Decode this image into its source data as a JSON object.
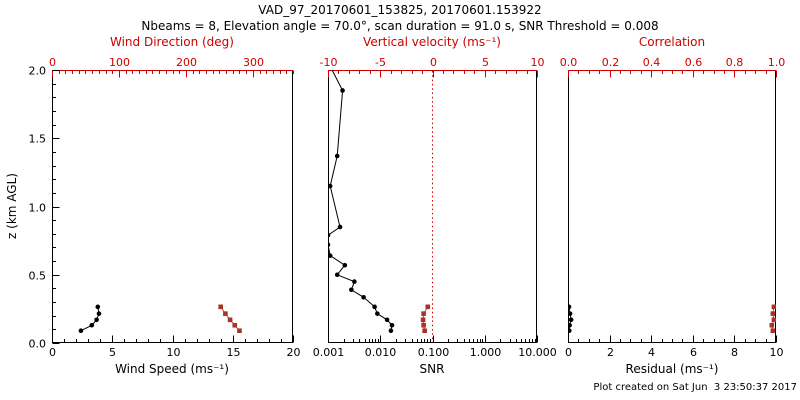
{
  "title": "VAD_97_20170601_153825, 20170601.153922",
  "subtitle": "Nbeams = 8, Elevation angle = 70.0°, scan duration = 91.0 s, SNR Threshold = 0.008",
  "footer": {
    "created": "Plot created on Sat Jun  3 23:50:37 2017"
  },
  "colors": {
    "axis_red": "#cc0000",
    "marker_red": "#a93226",
    "line_red": "#c0392b",
    "black": "#000000"
  },
  "chart_data": [
    {
      "id": "wind",
      "type": "scatter",
      "xlabel": "Wind Speed (ms⁻¹)",
      "top_label": "Wind Direction (deg)",
      "ylabel": "z (km AGL)",
      "x_bottom": {
        "min": 0,
        "max": 20,
        "major": [
          0,
          5,
          10,
          15,
          20
        ],
        "labels": [
          "0",
          "5",
          "10",
          "15",
          "20"
        ],
        "minor_step": 1
      },
      "x_top": {
        "min": 0,
        "max": 360,
        "major": [
          0,
          100,
          200,
          300
        ],
        "labels": [
          "0",
          "100",
          "200",
          "300"
        ],
        "minor_step": 10
      },
      "y": {
        "min": 0,
        "max": 2,
        "major": [
          0,
          0.5,
          1,
          1.5,
          2
        ],
        "labels": [
          "0.0",
          "0.5",
          "1.0",
          "1.5",
          "2.0"
        ],
        "minor_step": 0.1
      },
      "series": [
        {
          "name": "wind-speed",
          "color": "black",
          "marker": "circle",
          "axis": "bottom",
          "z": [
            0.09,
            0.13,
            0.17,
            0.215,
            0.265
          ],
          "values": [
            2.4,
            3.3,
            3.7,
            3.9,
            3.8
          ]
        },
        {
          "name": "wind-direction",
          "color": "red",
          "marker": "square",
          "axis": "top",
          "z": [
            0.09,
            0.13,
            0.17,
            0.215,
            0.265
          ],
          "values": [
            280,
            273,
            266,
            259,
            252
          ]
        }
      ]
    },
    {
      "id": "snr",
      "type": "scatter",
      "xlabel": "SNR",
      "top_label": "Vertical velocity (ms⁻¹)",
      "x_bottom": {
        "scale": "log",
        "min": 0.001,
        "max": 10,
        "major": [
          0.001,
          0.01,
          0.1,
          1,
          10
        ],
        "labels": [
          "0.001",
          "0.010",
          "0.100",
          "1.000",
          "10.000"
        ]
      },
      "x_top": {
        "min": -10,
        "max": 10,
        "major": [
          -10,
          -5,
          0,
          5,
          10
        ],
        "labels": [
          "-10",
          "-5",
          "0",
          "5",
          "10"
        ],
        "minor_step": 1,
        "zero_line": true
      },
      "series": [
        {
          "name": "snr-profile",
          "color": "black",
          "marker": "circle",
          "axis": "bottom",
          "z": [
            2.0,
            1.85,
            1.37,
            1.15,
            0.85,
            0.79,
            0.72,
            0.64,
            0.57,
            0.5,
            0.45,
            0.39,
            0.335,
            0.265,
            0.215,
            0.17,
            0.13,
            0.09
          ],
          "values": [
            0.0012,
            0.0019,
            0.0015,
            0.0011,
            0.0017,
            0.001,
            0.001,
            0.0011,
            0.0021,
            0.0015,
            0.0032,
            0.0028,
            0.0048,
            0.0078,
            0.0088,
            0.0135,
            0.0168,
            0.016
          ]
        },
        {
          "name": "vertical-velocity",
          "color": "red",
          "marker": "square",
          "axis": "top",
          "z": [
            0.09,
            0.13,
            0.17,
            0.215,
            0.265
          ],
          "values": [
            -0.75,
            -0.85,
            -0.9,
            -0.85,
            -0.45
          ]
        }
      ]
    },
    {
      "id": "residual",
      "type": "scatter",
      "xlabel": "Residual (ms⁻¹)",
      "top_label": "Correlation",
      "x_bottom": {
        "min": 0,
        "max": 10,
        "major": [
          0,
          2,
          4,
          6,
          8,
          10
        ],
        "labels": [
          "0",
          "2",
          "4",
          "6",
          "8",
          "10"
        ],
        "minor_step": 0.5
      },
      "x_top": {
        "min": 0,
        "max": 1,
        "major": [
          0,
          0.2,
          0.4,
          0.6,
          0.8,
          1
        ],
        "labels": [
          "0.0",
          "0.2",
          "0.4",
          "0.6",
          "0.8",
          "1.0"
        ],
        "minor_step": 0.05
      },
      "series": [
        {
          "name": "residual",
          "color": "black",
          "marker": "circle",
          "axis": "bottom",
          "z": [
            0.09,
            0.13,
            0.17,
            0.215,
            0.265
          ],
          "values": [
            0.06,
            0.08,
            0.15,
            0.1,
            0.05
          ]
        },
        {
          "name": "correlation",
          "color": "red",
          "marker": "square",
          "axis": "top",
          "z": [
            0.09,
            0.13,
            0.17,
            0.215,
            0.265
          ],
          "values": [
            0.985,
            0.98,
            0.99,
            0.985,
            0.99
          ]
        }
      ]
    }
  ]
}
